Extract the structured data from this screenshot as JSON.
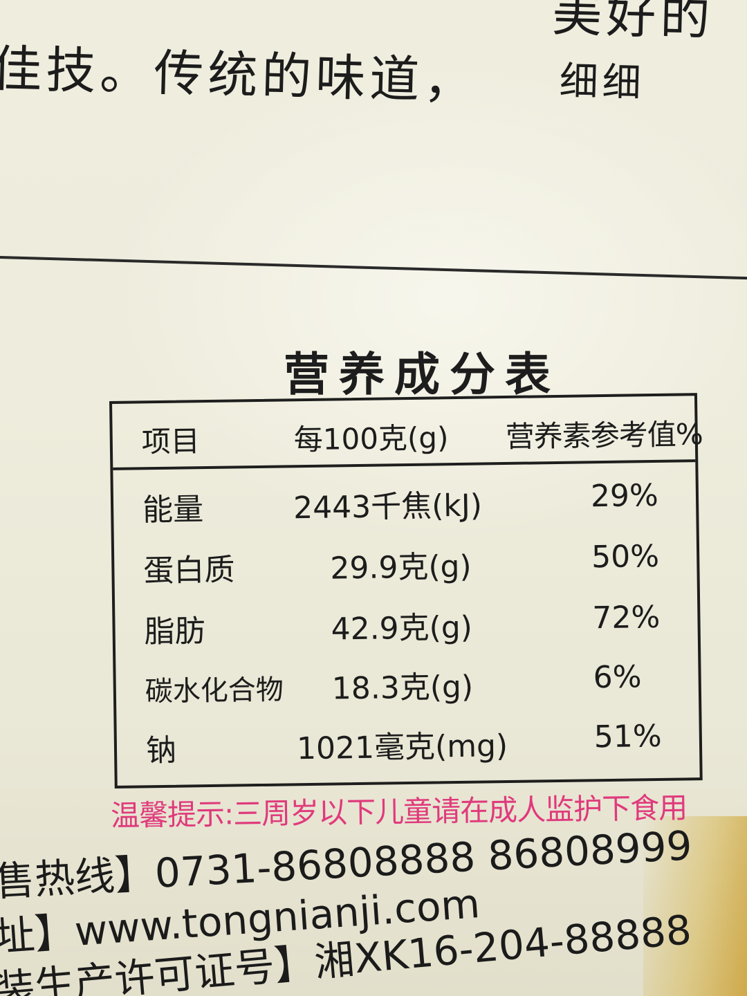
{
  "handwriting": {
    "top_fragment": "美好的",
    "main_line": "佳技。传统的味道，",
    "end_fragment": "细细"
  },
  "nutrition_facts": {
    "title": "营养成分表",
    "headers": {
      "item": "项目",
      "per_100g": "每100克(g)",
      "nrv": "营养素参考值%"
    },
    "rows": [
      {
        "name": "能量",
        "value": "2443千焦(kJ)",
        "nrv": "29%"
      },
      {
        "name": "蛋白质",
        "value": "29.9克(g)",
        "nrv": "50%"
      },
      {
        "name": "脂肪",
        "value": "42.9克(g)",
        "nrv": "72%"
      },
      {
        "name": "碳水化合物",
        "value": "18.3克(g)",
        "nrv": "6%"
      },
      {
        "name": "钠",
        "value": "1021毫克(mg)",
        "nrv": "51%"
      }
    ]
  },
  "tip": "温馨提示:三周岁以下儿童请在成人监护下食用",
  "contact": {
    "hotline": "售热线】0731-86808888 86808999",
    "website": "址】www.tongnianji.com",
    "license": "装生产许可证号】湘XK16-204-88888"
  },
  "colors": {
    "tip_pink": "#e03a7c",
    "package_cream": "#eeecdc",
    "ink": "#1c1c1c"
  }
}
